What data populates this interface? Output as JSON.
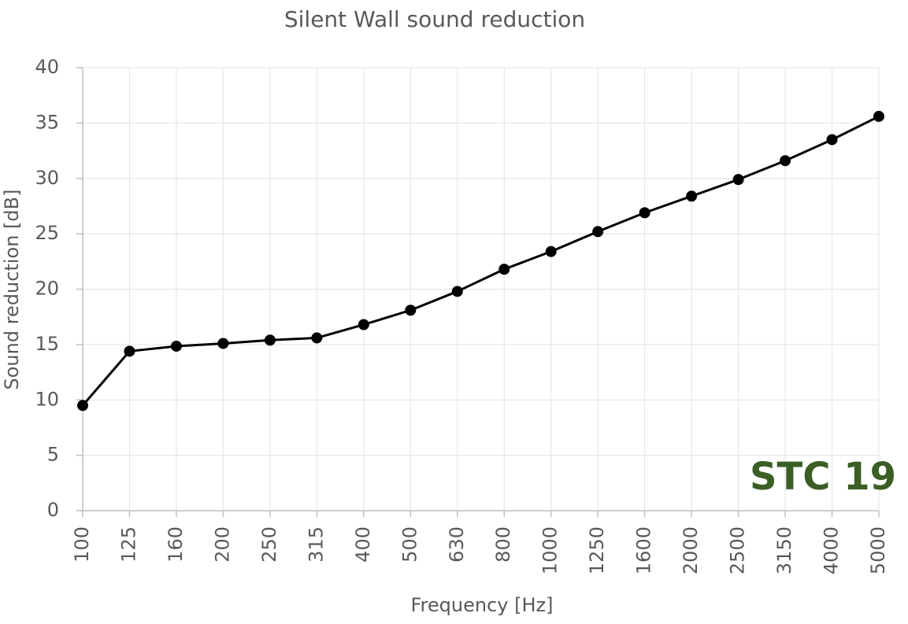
{
  "chart_data": {
    "type": "line",
    "title": "Silent Wall sound reduction",
    "x_label": "Frequency [Hz]",
    "y_label": "Sound reduction [dB]",
    "annotation": "STC 19",
    "annotation_color": "#3b5e24",
    "categories": [
      "100",
      "125",
      "160",
      "200",
      "250",
      "315",
      "400",
      "500",
      "630",
      "800",
      "1000",
      "1250",
      "1600",
      "2000",
      "2500",
      "3150",
      "4000",
      "5000"
    ],
    "series": [
      {
        "name": "Silent Wall",
        "color": "#000000",
        "values": [
          9.5,
          14.4,
          14.85,
          15.1,
          15.4,
          15.6,
          16.8,
          18.1,
          19.8,
          21.8,
          23.4,
          25.2,
          26.9,
          28.4,
          29.9,
          31.6,
          33.5,
          35.6
        ]
      }
    ],
    "ylim": [
      0,
      40
    ],
    "yticks": [
      0,
      5,
      10,
      15,
      20,
      25,
      30,
      35,
      40
    ],
    "grid": true
  }
}
